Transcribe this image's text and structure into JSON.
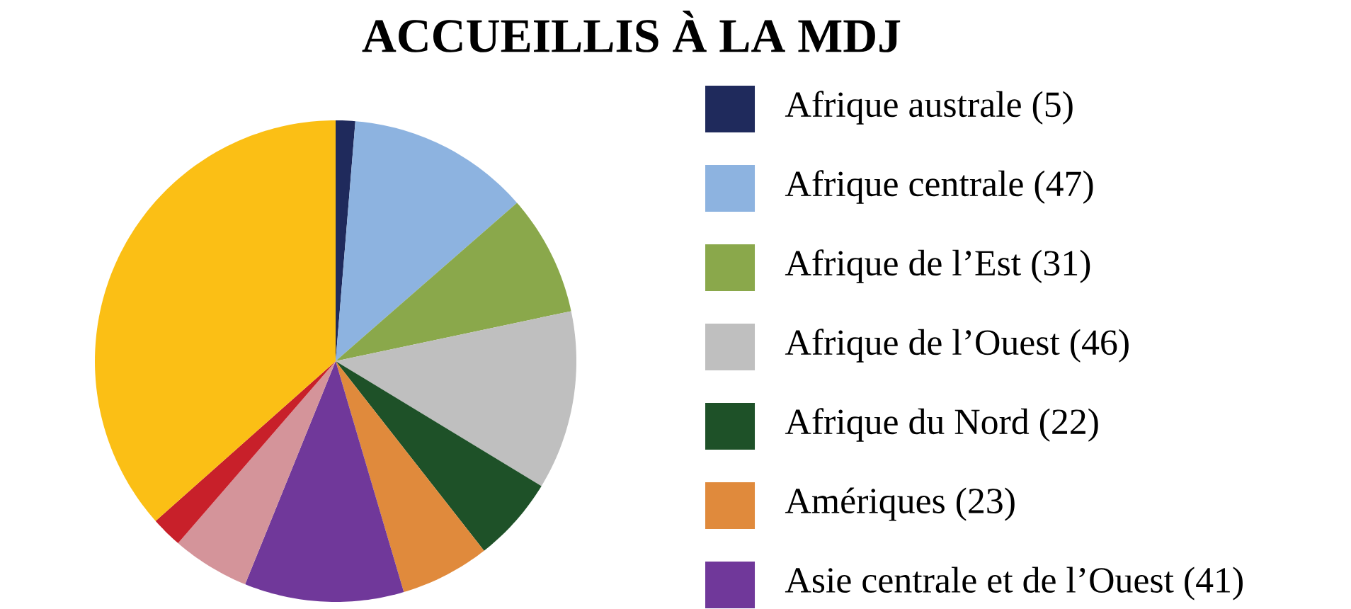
{
  "chart_data": {
    "type": "pie",
    "title": "ACCUEILLIS À LA MDJ",
    "categories": [
      "Afrique australe (5)",
      "Afrique centrale (47)",
      "Afrique de l’Est (31)",
      "Afrique de l’Ouest (46)",
      "Afrique du Nord (22)",
      "Amériques (23)",
      "Asie centrale et de l’Ouest (41)",
      null,
      null,
      null
    ],
    "values": [
      5,
      47,
      31,
      46,
      22,
      23,
      41,
      20,
      8,
      140
    ],
    "colors": [
      "#1f2a5c",
      "#8db3e0",
      "#8aa84b",
      "#bfbfbf",
      "#1e5128",
      "#e08a3c",
      "#70389a",
      "#d4949a",
      "#c8202a",
      "#fbbf15"
    ],
    "legend": "right"
  }
}
